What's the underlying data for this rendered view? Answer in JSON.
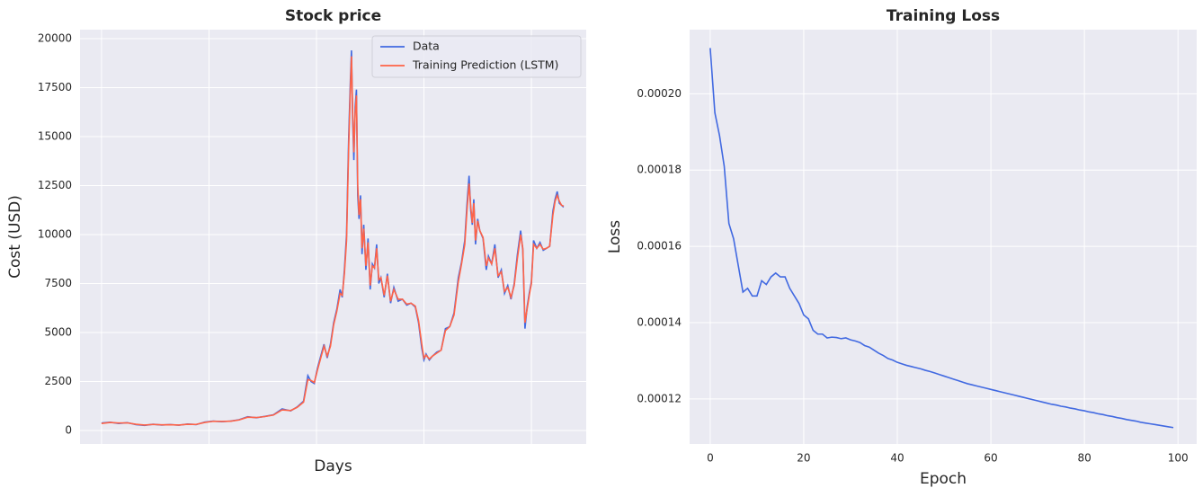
{
  "chart_data": [
    {
      "type": "line",
      "title": "Stock price",
      "x_label": "Days",
      "y_label": "Cost (USD)",
      "x": [
        0,
        40,
        80,
        120,
        160,
        200,
        240,
        280,
        320,
        360,
        400,
        440,
        480,
        520,
        560,
        600,
        640,
        680,
        720,
        760,
        800,
        840,
        880,
        910,
        940,
        960,
        975,
        990,
        1005,
        1020,
        1035,
        1050,
        1065,
        1080,
        1095,
        1110,
        1120,
        1130,
        1140,
        1150,
        1158,
        1163,
        1168,
        1174,
        1180,
        1186,
        1192,
        1198,
        1205,
        1212,
        1220,
        1230,
        1240,
        1250,
        1260,
        1270,
        1280,
        1290,
        1300,
        1315,
        1330,
        1345,
        1360,
        1380,
        1400,
        1420,
        1440,
        1460,
        1475,
        1490,
        1500,
        1510,
        1525,
        1540,
        1560,
        1580,
        1600,
        1620,
        1640,
        1660,
        1675,
        1690,
        1700,
        1710,
        1718,
        1725,
        1732,
        1740,
        1750,
        1760,
        1775,
        1790,
        1800,
        1815,
        1830,
        1845,
        1860,
        1875,
        1890,
        1905,
        1920,
        1935,
        1950,
        1960,
        1970,
        1980,
        1990,
        2000,
        2010,
        2025,
        2040,
        2055,
        2070,
        2085,
        2100,
        2110,
        2120,
        2130,
        2140,
        2150
      ],
      "series": [
        {
          "name": "Data",
          "color": "#4169e1",
          "values": [
            380,
            420,
            360,
            400,
            300,
            260,
            320,
            280,
            300,
            270,
            330,
            300,
            430,
            480,
            450,
            480,
            550,
            700,
            650,
            720,
            800,
            1100,
            1000,
            1200,
            1500,
            2800,
            2500,
            2400,
            3200,
            3800,
            4400,
            3700,
            4400,
            5500,
            6200,
            7200,
            6800,
            8200,
            10000,
            15000,
            17900,
            19400,
            16000,
            13800,
            16500,
            17400,
            12000,
            10800,
            12000,
            9000,
            10500,
            8200,
            9800,
            7200,
            8500,
            8300,
            9500,
            7500,
            7800,
            6800,
            8000,
            6500,
            7300,
            6600,
            6700,
            6400,
            6500,
            6300,
            5500,
            4200,
            3600,
            3900,
            3600,
            3800,
            4000,
            4100,
            5200,
            5300,
            6000,
            7800,
            8600,
            9700,
            11500,
            13000,
            11200,
            10500,
            11800,
            9500,
            10800,
            10200,
            9800,
            8200,
            8900,
            8500,
            9500,
            7800,
            8200,
            7000,
            7400,
            6700,
            7500,
            9000,
            10200,
            9200,
            5200,
            6300,
            7000,
            7600,
            9700,
            9300,
            9600,
            9200,
            9300,
            9400,
            11200,
            11800,
            12200,
            11600,
            11500,
            11400
          ]
        },
        {
          "name": "Training Prediction (LSTM)",
          "color": "#ff6347",
          "values": [
            360,
            410,
            380,
            390,
            320,
            280,
            310,
            290,
            295,
            280,
            320,
            310,
            410,
            470,
            460,
            475,
            540,
            680,
            660,
            710,
            790,
            1050,
            1020,
            1180,
            1450,
            2600,
            2550,
            2450,
            3100,
            3700,
            4300,
            3800,
            4300,
            5400,
            6100,
            7000,
            6900,
            8000,
            9700,
            14500,
            17500,
            19100,
            16400,
            14200,
            16200,
            17100,
            12500,
            11000,
            11800,
            9300,
            10300,
            8400,
            9600,
            7400,
            8400,
            8300,
            9300,
            7700,
            7800,
            6900,
            7900,
            6600,
            7200,
            6700,
            6700,
            6450,
            6500,
            6350,
            5600,
            4400,
            3700,
            3850,
            3650,
            3800,
            3950,
            4100,
            5100,
            5300,
            5900,
            7600,
            8500,
            9500,
            11200,
            12600,
            11400,
            10600,
            11600,
            9700,
            10700,
            10200,
            9850,
            8400,
            8800,
            8500,
            9300,
            7900,
            8100,
            7100,
            7300,
            6800,
            7400,
            8800,
            10000,
            9300,
            5500,
            6200,
            6900,
            7500,
            9500,
            9300,
            9500,
            9250,
            9300,
            9400,
            11000,
            11700,
            12000,
            11700,
            11500,
            11450
          ]
        }
      ],
      "xlim": [
        -100,
        2255
      ],
      "xticks": [
        0,
        500,
        1000,
        1500,
        2000
      ],
      "ylim": [
        -688,
        20459
      ],
      "yticks": [
        0,
        2500,
        5000,
        7500,
        10000,
        12500,
        15000,
        17500,
        20000
      ],
      "grid": true,
      "legend": "upper right"
    },
    {
      "type": "line",
      "title": "Training Loss",
      "x_label": "Epoch",
      "y_label": "Loss",
      "x": [
        0,
        1,
        2,
        3,
        4,
        5,
        6,
        7,
        8,
        9,
        10,
        11,
        12,
        13,
        14,
        15,
        16,
        17,
        18,
        19,
        20,
        21,
        22,
        23,
        24,
        25,
        26,
        27,
        28,
        29,
        30,
        31,
        32,
        33,
        34,
        35,
        36,
        37,
        38,
        39,
        40,
        41,
        42,
        43,
        44,
        45,
        46,
        47,
        48,
        49,
        50,
        51,
        52,
        53,
        54,
        55,
        56,
        57,
        58,
        59,
        60,
        61,
        62,
        63,
        64,
        65,
        66,
        67,
        68,
        69,
        70,
        71,
        72,
        73,
        74,
        75,
        76,
        77,
        78,
        79,
        80,
        81,
        82,
        83,
        84,
        85,
        86,
        87,
        88,
        89,
        90,
        91,
        92,
        93,
        94,
        95,
        96,
        97,
        98,
        99
      ],
      "series": [
        {
          "name": "Loss",
          "color": "#4169e1",
          "values": [
            0.000212,
            0.000195,
            0.000189,
            0.000181,
            0.000166,
            0.000162,
            0.000155,
            0.000148,
            0.000149,
            0.000147,
            0.000147,
            0.000151,
            0.00015,
            0.000152,
            0.000153,
            0.000152,
            0.000152,
            0.000149,
            0.000147,
            0.000145,
            0.000142,
            0.000141,
            0.000138,
            0.000137,
            0.000137,
            0.000136,
            0.0001362,
            0.0001361,
            0.0001358,
            0.000136,
            0.0001355,
            0.0001352,
            0.0001348,
            0.000134,
            0.0001336,
            0.0001328,
            0.000132,
            0.0001314,
            0.0001306,
            0.0001302,
            0.0001296,
            0.0001292,
            0.0001288,
            0.0001285,
            0.0001282,
            0.0001279,
            0.0001275,
            0.0001272,
            0.0001268,
            0.0001264,
            0.000126,
            0.0001256,
            0.0001252,
            0.0001248,
            0.0001244,
            0.000124,
            0.0001237,
            0.0001234,
            0.0001231,
            0.0001228,
            0.0001225,
            0.0001222,
            0.0001219,
            0.0001216,
            0.0001213,
            0.000121,
            0.0001207,
            0.0001204,
            0.0001201,
            0.0001198,
            0.0001195,
            0.0001192,
            0.0001189,
            0.0001186,
            0.0001184,
            0.0001181,
            0.0001179,
            0.0001176,
            0.0001174,
            0.0001171,
            0.0001169,
            0.0001166,
            0.0001164,
            0.0001161,
            0.0001159,
            0.0001156,
            0.0001154,
            0.0001151,
            0.0001149,
            0.0001146,
            0.0001144,
            0.0001142,
            0.0001139,
            0.0001137,
            0.0001135,
            0.0001133,
            0.0001131,
            0.0001129,
            0.0001127,
            0.0001125
          ]
        }
      ],
      "xlim": [
        -4.4,
        104
      ],
      "xticks": [
        0,
        20,
        40,
        60,
        80,
        100
      ],
      "ylim": [
        0.0001082,
        0.0002168
      ],
      "yticks": [
        {
          "value": 0.00012,
          "label": "0.00012"
        },
        {
          "value": 0.00014,
          "label": "0.00014"
        },
        {
          "value": 0.00016,
          "label": "0.00016"
        },
        {
          "value": 0.00018,
          "label": "0.00018"
        },
        {
          "value": 0.0002,
          "label": "0.00020"
        }
      ],
      "grid": true
    }
  ]
}
